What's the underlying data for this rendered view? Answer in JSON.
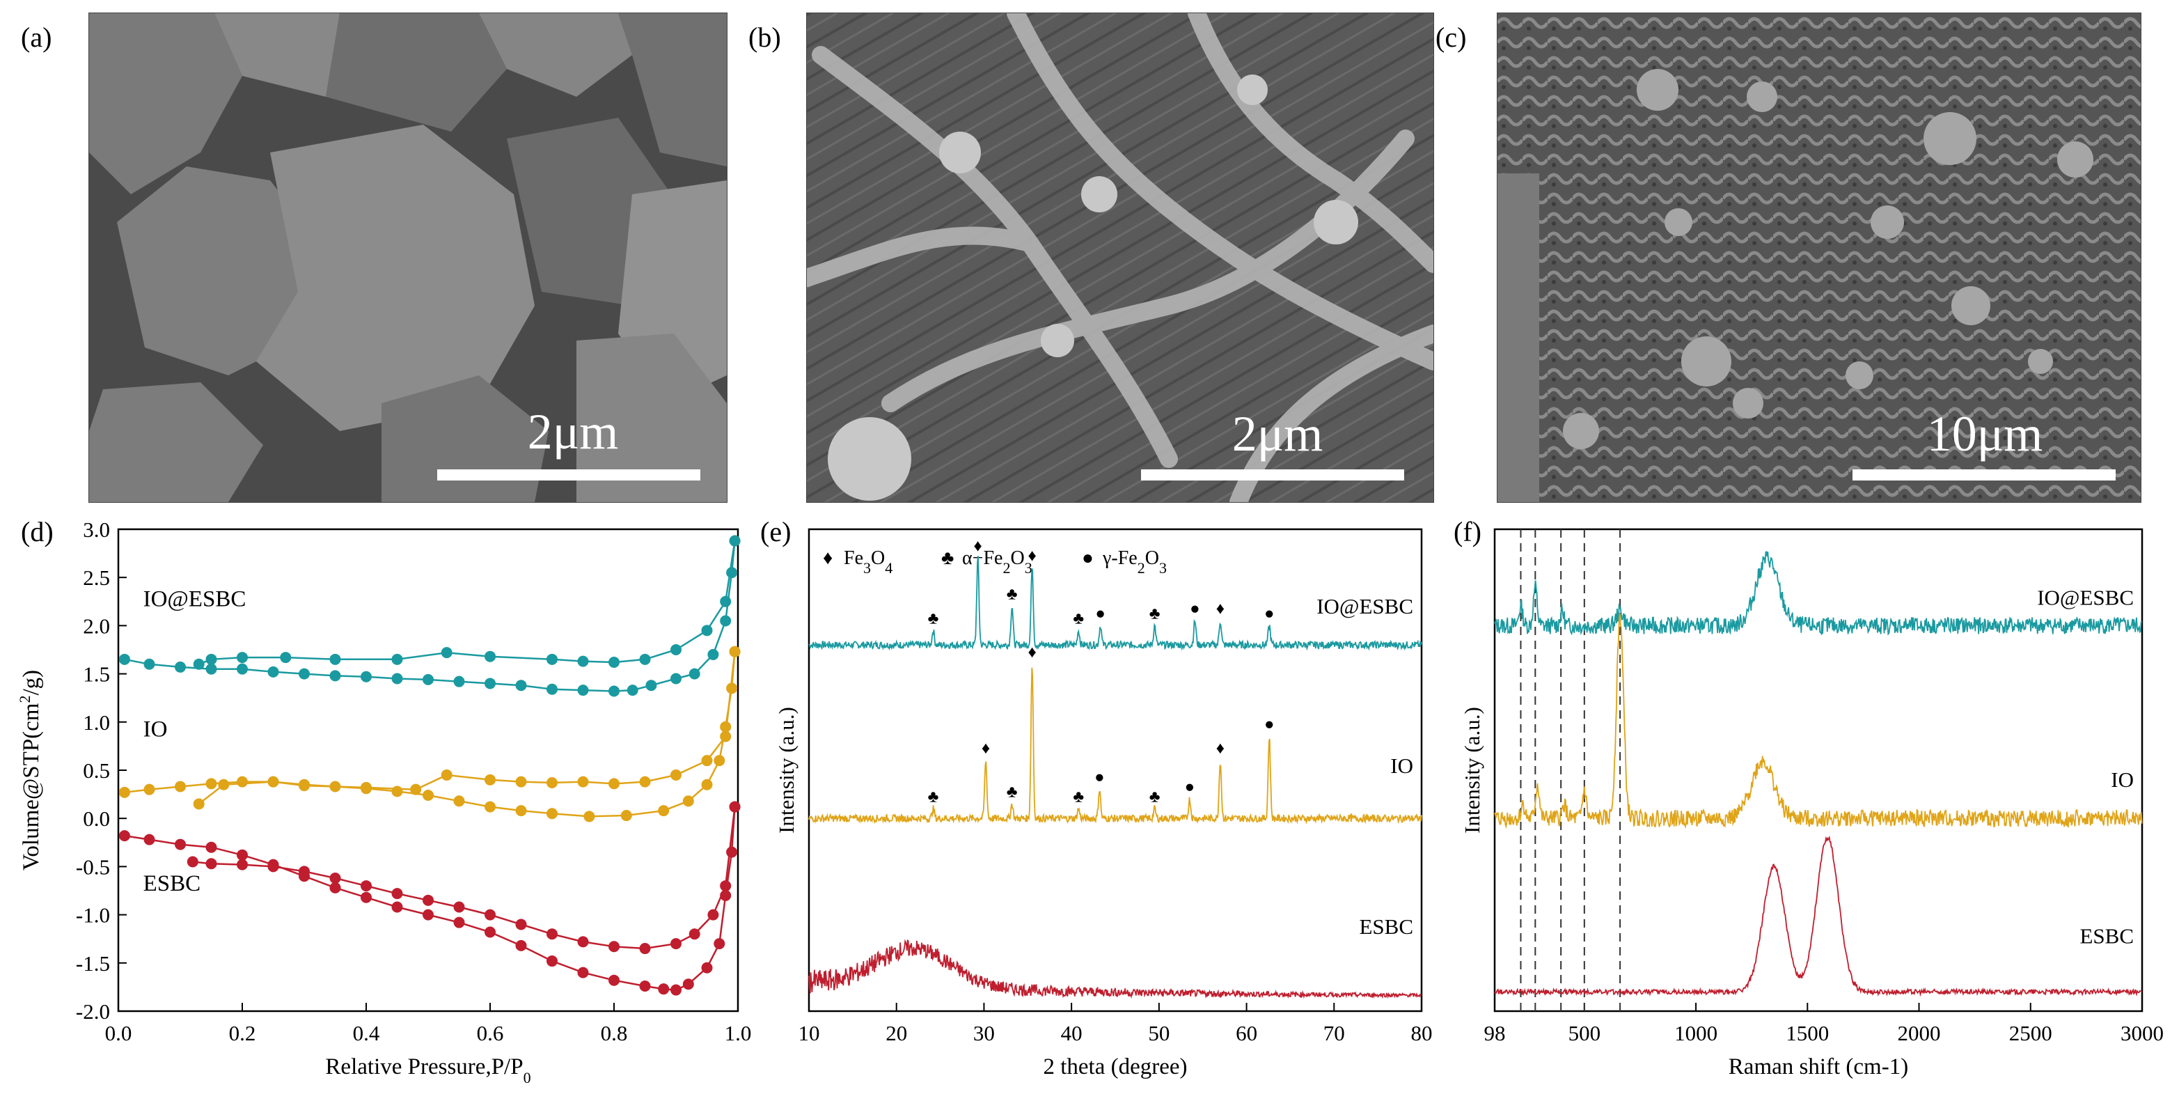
{
  "figure": {
    "panels": {
      "a": {
        "label": "(a)",
        "scale_bar": "2μm"
      },
      "b": {
        "label": "(b)",
        "scale_bar": "2μm"
      },
      "c": {
        "label": "(c)",
        "scale_bar": "10μm"
      },
      "d": {
        "label": "(d)"
      },
      "e": {
        "label": "(e)"
      },
      "f": {
        "label": "(f)"
      }
    }
  },
  "colors": {
    "teal": "#1a9aa0",
    "gold": "#e0a418",
    "red": "#bf1e2e"
  },
  "chart_data": [
    {
      "id": "d",
      "type": "line",
      "title": "",
      "xlabel": "Relative Pressure,P/P0",
      "ylabel": "Volume@STP(cm2/g)",
      "xlim": [
        0,
        1.0
      ],
      "ylim": [
        -2.0,
        3.0
      ],
      "xticks": [
        "0.0",
        "0.2",
        "0.4",
        "0.6",
        "0.8",
        "1.0"
      ],
      "yticks": [
        "-2.0",
        "-1.5",
        "-1.0",
        "-0.5",
        "0.0",
        "0.5",
        "1.0",
        "1.5",
        "2.0",
        "2.5",
        "3.0"
      ],
      "series": [
        {
          "name": "IO@ESBC",
          "color": "#1a9aa0",
          "adsorption": [
            [
              0.01,
              1.65
            ],
            [
              0.05,
              1.6
            ],
            [
              0.1,
              1.57
            ],
            [
              0.15,
              1.55
            ],
            [
              0.2,
              1.55
            ],
            [
              0.25,
              1.52
            ],
            [
              0.3,
              1.5
            ],
            [
              0.35,
              1.48
            ],
            [
              0.4,
              1.47
            ],
            [
              0.45,
              1.45
            ],
            [
              0.5,
              1.44
            ],
            [
              0.55,
              1.42
            ],
            [
              0.6,
              1.4
            ],
            [
              0.65,
              1.38
            ],
            [
              0.7,
              1.34
            ],
            [
              0.75,
              1.33
            ],
            [
              0.8,
              1.32
            ],
            [
              0.83,
              1.33
            ],
            [
              0.86,
              1.38
            ],
            [
              0.9,
              1.45
            ],
            [
              0.93,
              1.5
            ],
            [
              0.96,
              1.7
            ],
            [
              0.98,
              2.05
            ],
            [
              0.99,
              2.55
            ],
            [
              0.995,
              2.88
            ]
          ],
          "desorption": [
            [
              0.995,
              2.88
            ],
            [
              0.98,
              2.25
            ],
            [
              0.95,
              1.95
            ],
            [
              0.9,
              1.75
            ],
            [
              0.85,
              1.65
            ],
            [
              0.8,
              1.62
            ],
            [
              0.75,
              1.63
            ],
            [
              0.7,
              1.65
            ],
            [
              0.6,
              1.68
            ],
            [
              0.53,
              1.72
            ],
            [
              0.45,
              1.65
            ],
            [
              0.35,
              1.65
            ],
            [
              0.27,
              1.67
            ],
            [
              0.2,
              1.67
            ],
            [
              0.15,
              1.65
            ],
            [
              0.13,
              1.6
            ]
          ]
        },
        {
          "name": "IO",
          "color": "#e0a418",
          "adsorption": [
            [
              0.01,
              0.27
            ],
            [
              0.05,
              0.3
            ],
            [
              0.1,
              0.33
            ],
            [
              0.15,
              0.36
            ],
            [
              0.2,
              0.38
            ],
            [
              0.25,
              0.38
            ],
            [
              0.3,
              0.35
            ],
            [
              0.35,
              0.33
            ],
            [
              0.4,
              0.31
            ],
            [
              0.45,
              0.28
            ],
            [
              0.5,
              0.24
            ],
            [
              0.55,
              0.18
            ],
            [
              0.6,
              0.12
            ],
            [
              0.65,
              0.08
            ],
            [
              0.7,
              0.05
            ],
            [
              0.76,
              0.02
            ],
            [
              0.82,
              0.03
            ],
            [
              0.88,
              0.08
            ],
            [
              0.92,
              0.18
            ],
            [
              0.95,
              0.35
            ],
            [
              0.97,
              0.6
            ],
            [
              0.98,
              0.95
            ],
            [
              0.99,
              1.35
            ],
            [
              0.995,
              1.73
            ]
          ],
          "desorption": [
            [
              0.995,
              1.73
            ],
            [
              0.98,
              0.85
            ],
            [
              0.95,
              0.6
            ],
            [
              0.9,
              0.45
            ],
            [
              0.85,
              0.38
            ],
            [
              0.8,
              0.36
            ],
            [
              0.75,
              0.38
            ],
            [
              0.7,
              0.37
            ],
            [
              0.65,
              0.38
            ],
            [
              0.6,
              0.4
            ],
            [
              0.53,
              0.45
            ],
            [
              0.48,
              0.3
            ],
            [
              0.4,
              0.32
            ],
            [
              0.3,
              0.34
            ],
            [
              0.25,
              0.38
            ],
            [
              0.17,
              0.35
            ],
            [
              0.13,
              0.15
            ]
          ]
        },
        {
          "name": "ESBC",
          "color": "#bf1e2e",
          "adsorption": [
            [
              0.01,
              -0.18
            ],
            [
              0.05,
              -0.22
            ],
            [
              0.1,
              -0.27
            ],
            [
              0.15,
              -0.3
            ],
            [
              0.2,
              -0.38
            ],
            [
              0.25,
              -0.48
            ],
            [
              0.3,
              -0.6
            ],
            [
              0.35,
              -0.72
            ],
            [
              0.4,
              -0.82
            ],
            [
              0.45,
              -0.92
            ],
            [
              0.5,
              -1.0
            ],
            [
              0.55,
              -1.08
            ],
            [
              0.6,
              -1.18
            ],
            [
              0.65,
              -1.32
            ],
            [
              0.7,
              -1.48
            ],
            [
              0.75,
              -1.6
            ],
            [
              0.8,
              -1.68
            ],
            [
              0.85,
              -1.74
            ],
            [
              0.88,
              -1.77
            ],
            [
              0.9,
              -1.78
            ],
            [
              0.92,
              -1.72
            ],
            [
              0.95,
              -1.55
            ],
            [
              0.97,
              -1.3
            ],
            [
              0.98,
              -0.8
            ],
            [
              0.99,
              -0.35
            ],
            [
              0.995,
              0.12
            ]
          ],
          "desorption": [
            [
              0.995,
              0.12
            ],
            [
              0.98,
              -0.7
            ],
            [
              0.96,
              -1.0
            ],
            [
              0.93,
              -1.2
            ],
            [
              0.9,
              -1.3
            ],
            [
              0.85,
              -1.35
            ],
            [
              0.8,
              -1.33
            ],
            [
              0.75,
              -1.28
            ],
            [
              0.7,
              -1.2
            ],
            [
              0.65,
              -1.1
            ],
            [
              0.6,
              -1.0
            ],
            [
              0.55,
              -0.92
            ],
            [
              0.5,
              -0.85
            ],
            [
              0.45,
              -0.78
            ],
            [
              0.4,
              -0.7
            ],
            [
              0.35,
              -0.62
            ],
            [
              0.3,
              -0.55
            ],
            [
              0.25,
              -0.5
            ],
            [
              0.2,
              -0.48
            ],
            [
              0.15,
              -0.47
            ],
            [
              0.12,
              -0.45
            ]
          ]
        }
      ]
    },
    {
      "id": "e",
      "type": "line",
      "title": "",
      "xlabel": "2 theta (degree)",
      "ylabel": "Intensity (a.u.)",
      "xlim": [
        10,
        80
      ],
      "xticks": [
        "10",
        "20",
        "30",
        "40",
        "50",
        "60",
        "70",
        "80"
      ],
      "legend": [
        {
          "symbol": "♦",
          "text": "Fe3O4"
        },
        {
          "symbol": "♣",
          "text": "α−Fe2O3"
        },
        {
          "symbol": "●",
          "text": "γ-Fe2O3"
        }
      ],
      "series": [
        {
          "name": "IO@ESBC",
          "color": "#1a9aa0",
          "offset": 0.76,
          "peaks": [
            [
              24.2,
              0.03,
              "♣"
            ],
            [
              29.3,
              0.18,
              "♦"
            ],
            [
              33.2,
              0.08,
              "♣"
            ],
            [
              35.5,
              0.16,
              "♦"
            ],
            [
              40.8,
              0.03,
              "♣"
            ],
            [
              43.3,
              0.04,
              "●"
            ],
            [
              49.5,
              0.04,
              "♣"
            ],
            [
              54.1,
              0.05,
              "●"
            ],
            [
              57.0,
              0.05,
              "♦"
            ],
            [
              62.6,
              0.04,
              "●"
            ]
          ]
        },
        {
          "name": "IO",
          "color": "#e0a418",
          "offset": 0.4,
          "peaks": [
            [
              24.2,
              0.02,
              "♣"
            ],
            [
              30.2,
              0.12,
              "♦"
            ],
            [
              33.2,
              0.03,
              "♣"
            ],
            [
              35.5,
              0.32,
              "♦"
            ],
            [
              40.8,
              0.02,
              "♣"
            ],
            [
              43.2,
              0.06,
              "●"
            ],
            [
              49.5,
              0.02,
              "♣"
            ],
            [
              53.5,
              0.04,
              "●"
            ],
            [
              57.0,
              0.12,
              "♦"
            ],
            [
              62.6,
              0.17,
              "●"
            ]
          ]
        },
        {
          "name": "ESBC",
          "color": "#bf1e2e",
          "offset": 0.03,
          "peaks": []
        }
      ]
    },
    {
      "id": "f",
      "type": "line",
      "title": "",
      "xlabel": "Raman shift (cm-1)",
      "ylabel": "Intensity (a.u.)",
      "xlim": [
        98,
        3000
      ],
      "xticks": [
        "98",
        "500",
        "1000",
        "1500",
        "2000",
        "2500",
        "3000"
      ],
      "dashed_lines": [
        215,
        280,
        395,
        500,
        660
      ],
      "series": [
        {
          "name": "IO@ESBC",
          "color": "#1a9aa0",
          "offset": 0.8,
          "peaks": [
            [
              215,
              0.04
            ],
            [
              280,
              0.08
            ],
            [
              400,
              0.03
            ],
            [
              660,
              0.03
            ],
            [
              1320,
              0.14
            ]
          ]
        },
        {
          "name": "IO",
          "color": "#e0a418",
          "offset": 0.4,
          "peaks": [
            [
              225,
              0.03
            ],
            [
              290,
              0.07
            ],
            [
              410,
              0.03
            ],
            [
              500,
              0.06
            ],
            [
              660,
              0.42
            ],
            [
              1300,
              0.12
            ]
          ]
        },
        {
          "name": "ESBC",
          "color": "#bf1e2e",
          "offset": 0.04,
          "peaks": [
            [
              1350,
              0.26
            ],
            [
              1590,
              0.32
            ]
          ]
        }
      ]
    }
  ]
}
